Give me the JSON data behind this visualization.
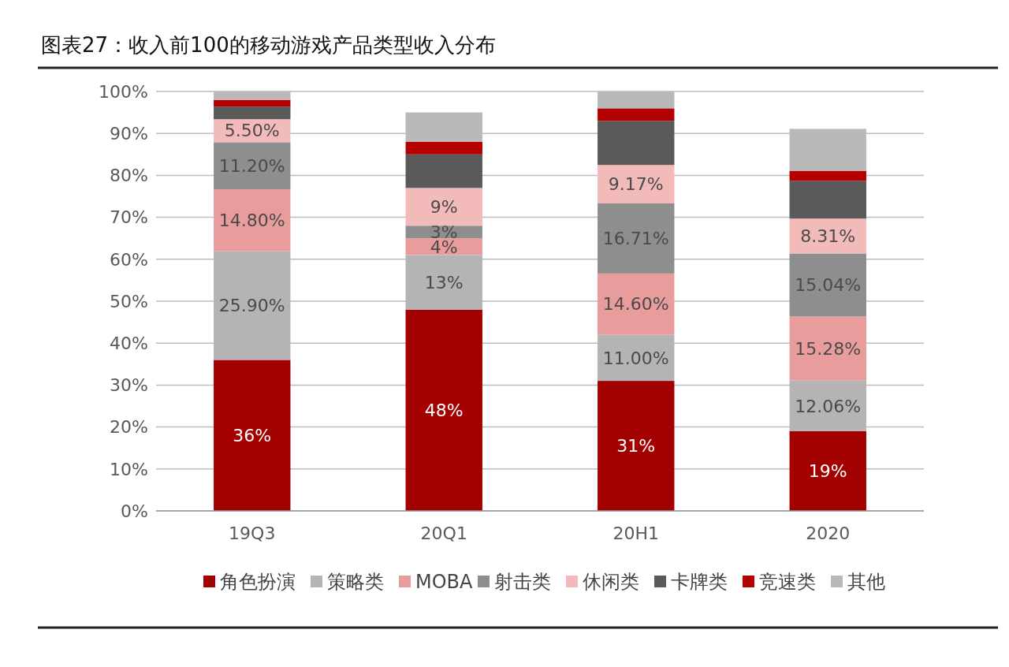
{
  "chart_data": {
    "type": "bar",
    "stacked": true,
    "title": "图表27：收入前100的移动游戏产品类型收入分布",
    "categories": [
      "19Q3",
      "20Q1",
      "20H1",
      "2020"
    ],
    "ylim": [
      0,
      100
    ],
    "yticks": [
      {
        "value": 0,
        "label": "0%"
      },
      {
        "value": 10,
        "label": "10%"
      },
      {
        "value": 20,
        "label": "20%"
      },
      {
        "value": 30,
        "label": "30%"
      },
      {
        "value": 40,
        "label": "40%"
      },
      {
        "value": 50,
        "label": "50%"
      },
      {
        "value": 60,
        "label": "60%"
      },
      {
        "value": 70,
        "label": "70%"
      },
      {
        "value": 80,
        "label": "80%"
      },
      {
        "value": 90,
        "label": "90%"
      },
      {
        "value": 100,
        "label": "100%"
      }
    ],
    "grid": "y",
    "legend": "bottom",
    "series": [
      {
        "name": "角色扮演",
        "color": "#a30000",
        "values": [
          36,
          48,
          31,
          19
        ],
        "value_labels": [
          "36%",
          "48%",
          "31%",
          "19%"
        ]
      },
      {
        "name": "策略类",
        "color": "#b4b4b4",
        "values": [
          25.9,
          13,
          11,
          12.06
        ],
        "value_labels": [
          "25.90%",
          "13%",
          "11.00%",
          "12.06%"
        ]
      },
      {
        "name": "MOBA",
        "color": "#e89c9c",
        "values": [
          14.8,
          4,
          14.6,
          15.28
        ],
        "value_labels": [
          "14.80%",
          "4%",
          "14.60%",
          "15.28%"
        ]
      },
      {
        "name": "射击类",
        "color": "#8e8e8e",
        "values": [
          11.2,
          3,
          16.71,
          15.04
        ],
        "value_labels": [
          "11.20%",
          "3%",
          "16.71%",
          "15.04%"
        ]
      },
      {
        "name": "休闲类",
        "color": "#f3baba",
        "values": [
          5.5,
          9,
          9.17,
          8.31
        ],
        "value_labels": [
          "5.50%",
          "9%",
          "9.17%",
          "8.31%"
        ]
      },
      {
        "name": "卡牌类",
        "color": "#5a5a5a",
        "values": [
          3,
          8,
          10.5,
          9
        ],
        "value_labels": [
          null,
          null,
          null,
          null
        ]
      },
      {
        "name": "竞速类",
        "color": "#b40000",
        "values": [
          1.6,
          3,
          3,
          2.4
        ],
        "value_labels": [
          null,
          null,
          null,
          null
        ]
      },
      {
        "name": "其他",
        "color": "#b9b9b9",
        "values": [
          2,
          7,
          4,
          10
        ],
        "value_labels": [
          null,
          null,
          null,
          null
        ]
      }
    ]
  }
}
